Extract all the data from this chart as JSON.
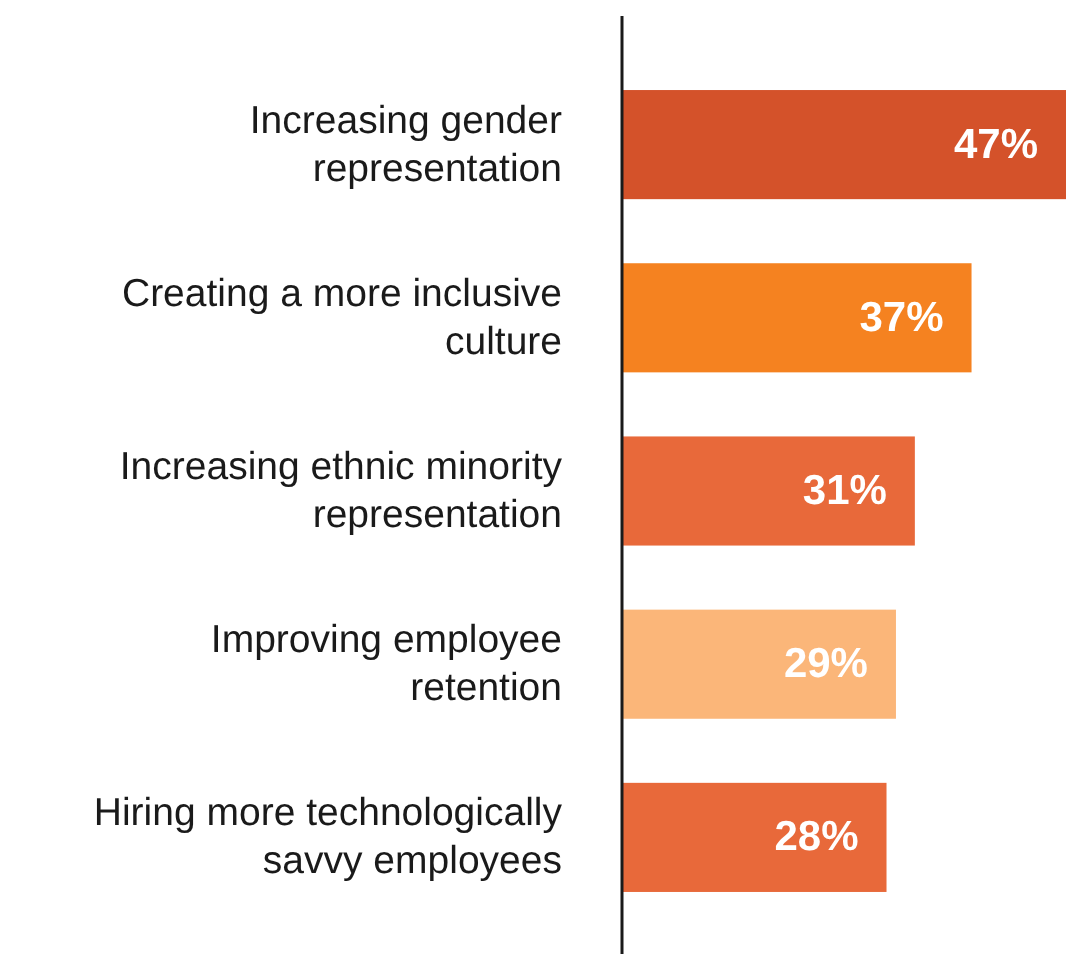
{
  "chart_data": {
    "type": "bar",
    "orientation": "horizontal",
    "categories": [
      "Increasing gender representation",
      "Creating a more inclusive culture",
      "Increasing ethnic minority representation",
      "Improving employee retention",
      "Hiring more technologically savvy employees"
    ],
    "values": [
      47,
      37,
      31,
      29,
      28
    ],
    "colors": [
      "#d4522a",
      "#f58220",
      "#e8693a",
      "#fbb679",
      "#e8693a"
    ],
    "value_labels": [
      "47%",
      "37%",
      "31%",
      "29%",
      "28%"
    ]
  }
}
